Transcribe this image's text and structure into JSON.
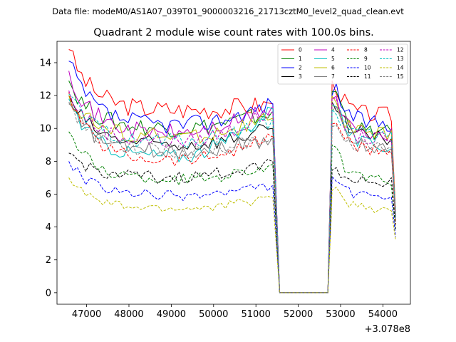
{
  "figure": {
    "suptitle": "Data file: modeM0/AS1A07_039T01_9000003216_21713cztM0_level2_quad_clean.evt"
  },
  "chart_data": {
    "type": "line",
    "title": "Quadrant 2 module wise count rates with 100.0s bins.",
    "xlabel": "",
    "ylabel": "",
    "x_offset_label": "+3.078e8",
    "xlim": [
      46300,
      54650
    ],
    "ylim": [
      -0.7,
      15.3
    ],
    "x_ticks": [
      47000,
      48000,
      49000,
      50000,
      51000,
      52000,
      53000,
      54000
    ],
    "x_tick_labels": [
      "47000",
      "48000",
      "49000",
      "50000",
      "51000",
      "52000",
      "53000",
      "54000"
    ],
    "y_ticks": [
      0,
      2,
      4,
      6,
      8,
      10,
      12,
      14
    ],
    "y_tick_labels": [
      "0",
      "2",
      "4",
      "6",
      "8",
      "10",
      "12",
      "14"
    ],
    "legend_position": "top-right",
    "segment1": {
      "x_start": 46580,
      "x_end": 51380,
      "step": 100
    },
    "gap": {
      "x": [
        51400,
        51560,
        51700,
        52700,
        52800
      ],
      "x_end_drop": 54300
    },
    "segment2": {
      "x_start": 52800,
      "x_end": 54200,
      "step": 100
    },
    "series": [
      {
        "name": "0",
        "color": "#ff0000",
        "dashed": false,
        "start": 14.8,
        "plateau": 11.1,
        "end_val": 11.5,
        "seg2_peak": 12.6,
        "seg2_plateau": 10.8,
        "seg2_end": 4.9
      },
      {
        "name": "1",
        "color": "#008000",
        "dashed": false,
        "start": 12.9,
        "plateau": 10.0,
        "end_val": 11.0,
        "seg2_peak": 12.3,
        "seg2_plateau": 9.7,
        "seg2_end": 4.7
      },
      {
        "name": "2",
        "color": "#0000ff",
        "dashed": false,
        "start": 14.1,
        "plateau": 10.2,
        "end_val": 11.5,
        "seg2_peak": 12.4,
        "seg2_plateau": 10.3,
        "seg2_end": 4.6
      },
      {
        "name": "3",
        "color": "#000000",
        "dashed": false,
        "start": 12.0,
        "plateau": 9.0,
        "end_val": 10.0,
        "seg2_peak": 11.3,
        "seg2_plateau": 9.4,
        "seg2_end": 4.8
      },
      {
        "name": "4",
        "color": "#bf00bf",
        "dashed": false,
        "start": 13.5,
        "plateau": 9.7,
        "end_val": 11.3,
        "seg2_peak": 11.8,
        "seg2_plateau": 9.6,
        "seg2_end": 4.6
      },
      {
        "name": "5",
        "color": "#00bfbf",
        "dashed": false,
        "start": 11.8,
        "plateau": 8.3,
        "end_val": 11.2,
        "seg2_peak": 11.7,
        "seg2_plateau": 8.9,
        "seg2_end": 4.5
      },
      {
        "name": "6",
        "color": "#bfbf00",
        "dashed": false,
        "start": 12.0,
        "plateau": 9.5,
        "end_val": 10.6,
        "seg2_peak": 11.6,
        "seg2_plateau": 9.6,
        "seg2_end": 4.7
      },
      {
        "name": "7",
        "color": "#808080",
        "dashed": false,
        "start": 11.6,
        "plateau": 8.6,
        "end_val": 9.4,
        "seg2_peak": 11.0,
        "seg2_plateau": 8.8,
        "seg2_end": 4.4
      },
      {
        "name": "8",
        "color": "#ff0000",
        "dashed": true,
        "start": 12.2,
        "plateau": 8.1,
        "end_val": 9.5,
        "seg2_peak": 10.5,
        "seg2_plateau": 8.6,
        "seg2_end": 4.2
      },
      {
        "name": "9",
        "color": "#008000",
        "dashed": true,
        "start": 9.8,
        "plateau": 6.9,
        "end_val": 7.8,
        "seg2_peak": 8.7,
        "seg2_plateau": 6.8,
        "seg2_end": 3.8
      },
      {
        "name": "10",
        "color": "#0000ff",
        "dashed": true,
        "start": 8.0,
        "plateau": 5.9,
        "end_val": 6.5,
        "seg2_peak": 7.0,
        "seg2_plateau": 5.8,
        "seg2_end": 3.4
      },
      {
        "name": "11",
        "color": "#000000",
        "dashed": true,
        "start": 8.5,
        "plateau": 7.0,
        "end_val": 8.0,
        "seg2_peak": 7.6,
        "seg2_plateau": 6.7,
        "seg2_end": 3.9
      },
      {
        "name": "12",
        "color": "#bf00bf",
        "dashed": true,
        "start": 12.3,
        "plateau": 9.2,
        "end_val": 11.0,
        "seg2_peak": 11.4,
        "seg2_plateau": 9.3,
        "seg2_end": 4.6
      },
      {
        "name": "13",
        "color": "#00bfbf",
        "dashed": true,
        "start": 12.1,
        "plateau": 9.2,
        "end_val": 10.5,
        "seg2_peak": 11.0,
        "seg2_plateau": 9.5,
        "seg2_end": 4.5
      },
      {
        "name": "14",
        "color": "#bfbf00",
        "dashed": true,
        "start": 7.0,
        "plateau": 5.1,
        "end_val": 5.8,
        "seg2_peak": 6.3,
        "seg2_plateau": 5.1,
        "seg2_end": 3.2
      },
      {
        "name": "15",
        "color": "#808080",
        "dashed": true,
        "start": 11.5,
        "plateau": 8.6,
        "end_val": 9.4,
        "seg2_peak": 10.5,
        "seg2_plateau": 8.7,
        "seg2_end": 4.3
      }
    ]
  }
}
